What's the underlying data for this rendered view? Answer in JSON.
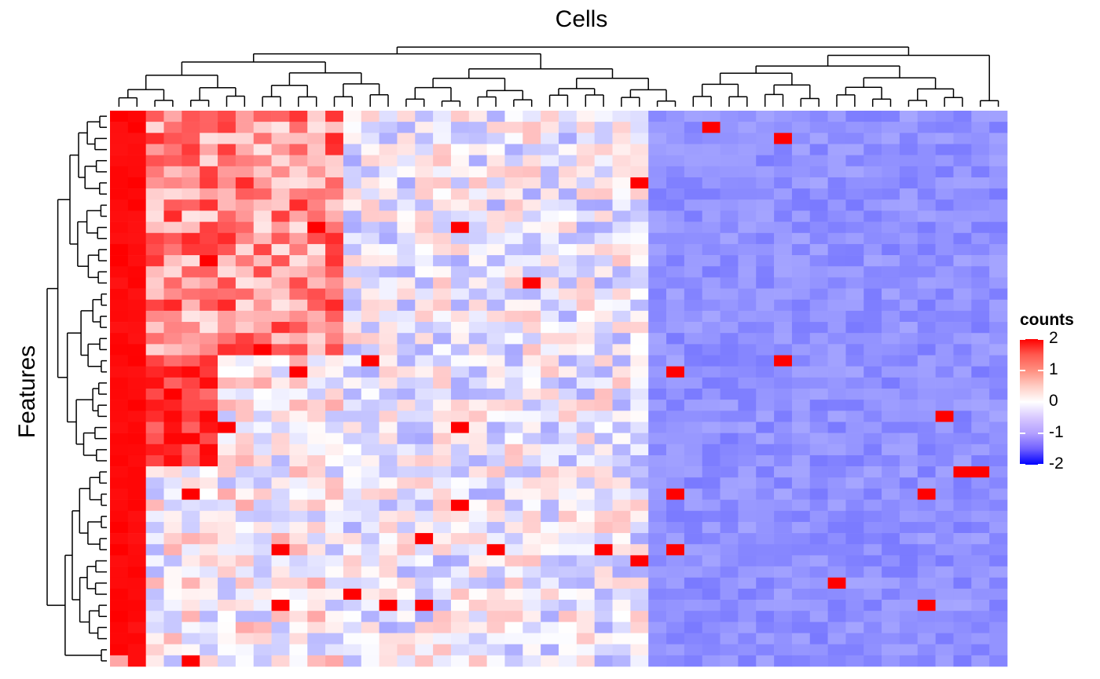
{
  "chart_data": {
    "type": "heatmap",
    "title": "",
    "column_title": "Cells",
    "row_title": "Features",
    "n_rows": 50,
    "n_cols": 50,
    "column_dendrogram": true,
    "row_dendrogram": true,
    "color_scale": {
      "name": "counts",
      "ticks": [
        2,
        1,
        0,
        -1,
        -2
      ],
      "tick_labels": [
        "2",
        "1",
        "0",
        "-1",
        "-2"
      ],
      "low_color": "#0000ff",
      "mid_color": "#ffffff",
      "high_color": "#ff0000",
      "range": [
        -2,
        2
      ]
    },
    "block_structure": [
      {
        "cols": [
          0,
          1
        ],
        "description": "very high in most features",
        "level": 2.0
      },
      {
        "cols": [
          2,
          12
        ],
        "rows": [
          0,
          21
        ],
        "description": "moderately high",
        "level": 0.9
      },
      {
        "cols": [
          2,
          5
        ],
        "rows": [
          22,
          31
        ],
        "description": "high",
        "level": 1.6
      },
      {
        "cols": [
          12,
          29
        ],
        "description": "near zero / mixed",
        "level": 0.0
      },
      {
        "cols": [
          30,
          49
        ],
        "description": "consistently low",
        "level": -0.9
      }
    ]
  }
}
